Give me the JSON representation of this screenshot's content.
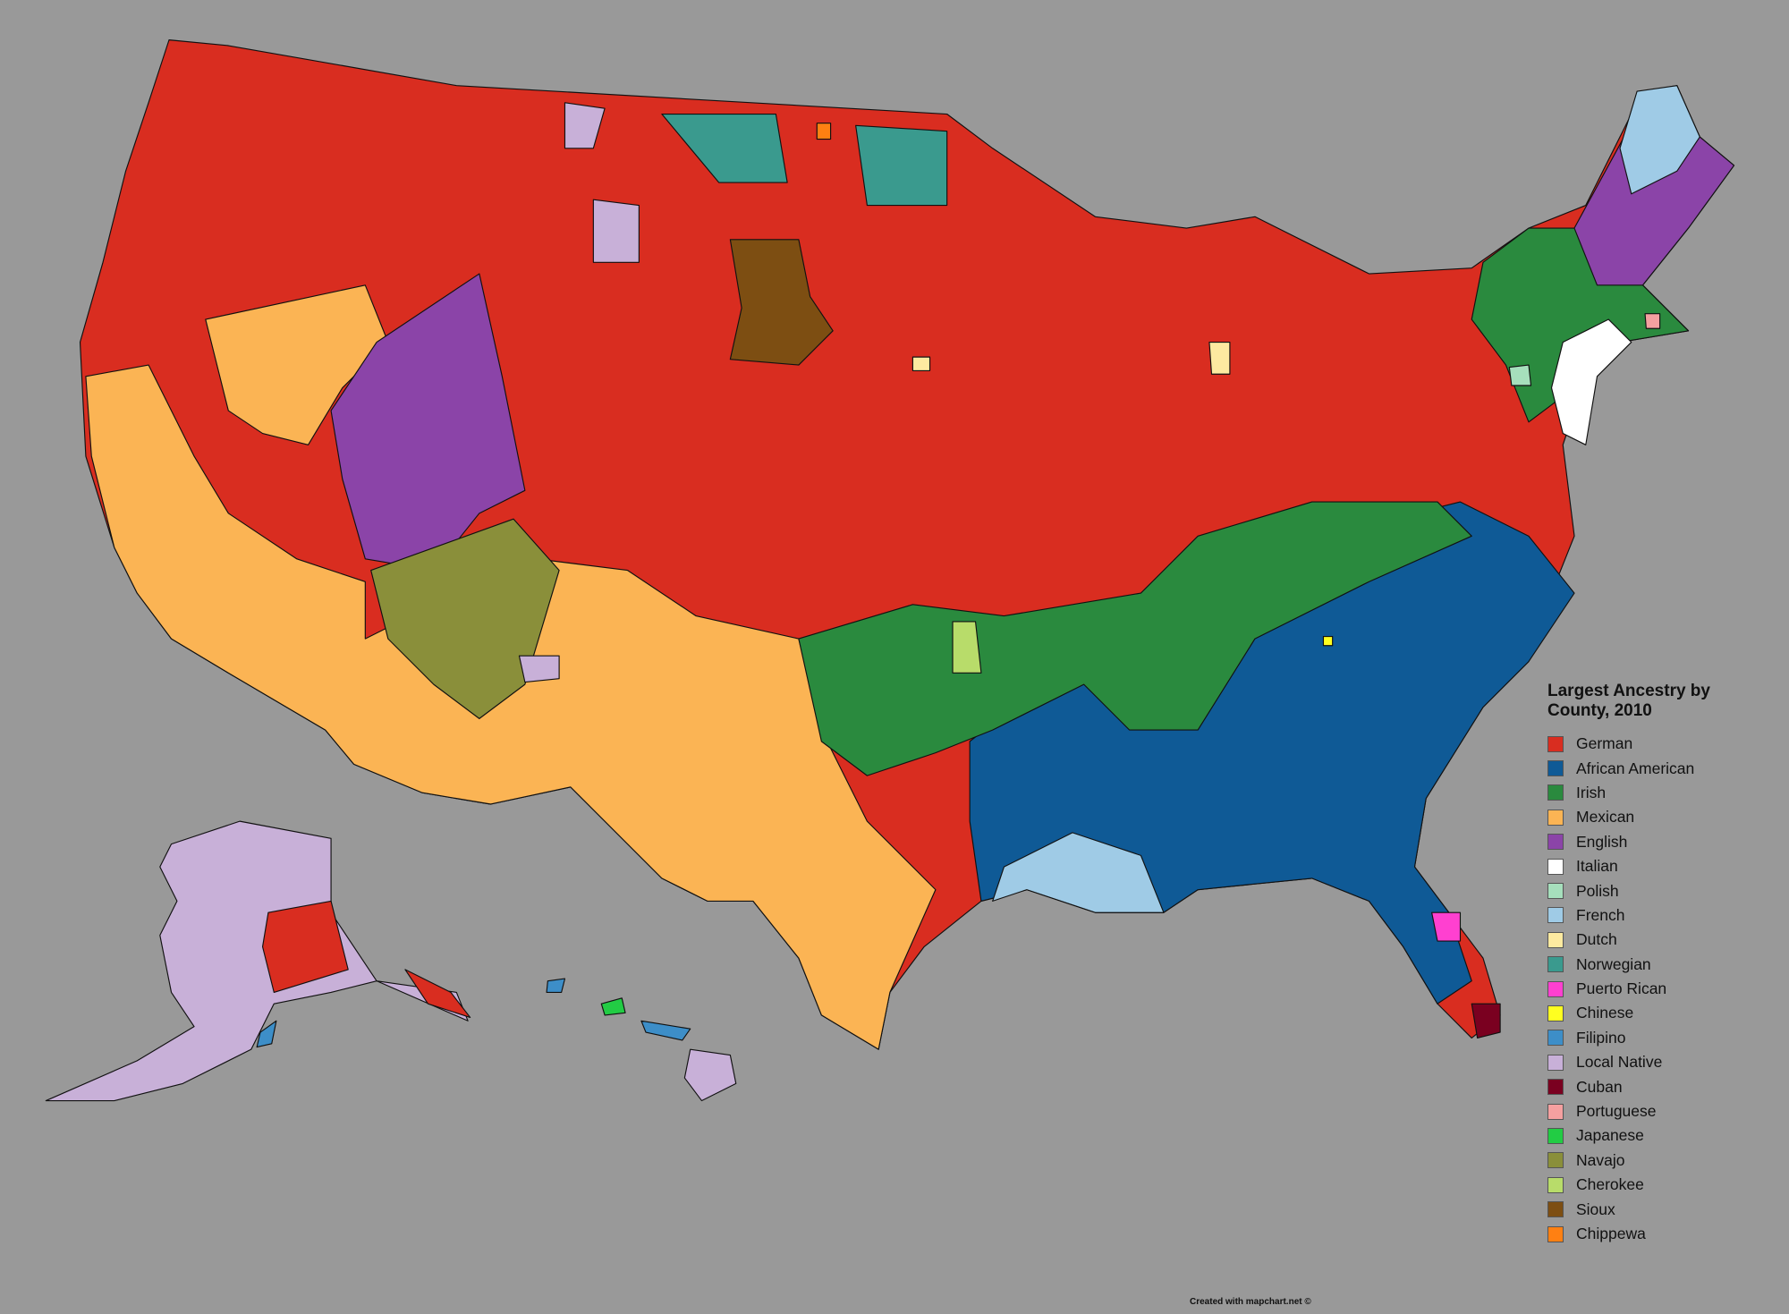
{
  "legend": {
    "title": "Largest Ancestry by County, 2010",
    "items": [
      {
        "label": "German",
        "color": "#d92d20"
      },
      {
        "label": "African American",
        "color": "#0f5a96"
      },
      {
        "label": "Irish",
        "color": "#2a8a3e"
      },
      {
        "label": "Mexican",
        "color": "#fbb454"
      },
      {
        "label": "English",
        "color": "#8b44a8"
      },
      {
        "label": "Italian",
        "color": "#ffffff"
      },
      {
        "label": "Polish",
        "color": "#a6dfbc"
      },
      {
        "label": "French",
        "color": "#9fcbe6"
      },
      {
        "label": "Dutch",
        "color": "#fdeaa0"
      },
      {
        "label": "Norwegian",
        "color": "#3a9a8e"
      },
      {
        "label": "Puerto Rican",
        "color": "#ff40d0"
      },
      {
        "label": "Chinese",
        "color": "#ffff20"
      },
      {
        "label": "Filipino",
        "color": "#3d8ec8"
      },
      {
        "label": "Local Native",
        "color": "#c8b0d8"
      },
      {
        "label": "Cuban",
        "color": "#7a0020"
      },
      {
        "label": "Portuguese",
        "color": "#f5a0a0"
      },
      {
        "label": "Japanese",
        "color": "#22cc44"
      },
      {
        "label": "Navajo",
        "color": "#8a8f3a"
      },
      {
        "label": "Cherokee",
        "color": "#b8dc6a"
      },
      {
        "label": "Sioux",
        "color": "#7d4e12"
      },
      {
        "label": "Chippewa",
        "color": "#ff8012"
      }
    ]
  },
  "credit": "Created with mapchart.net ©"
}
